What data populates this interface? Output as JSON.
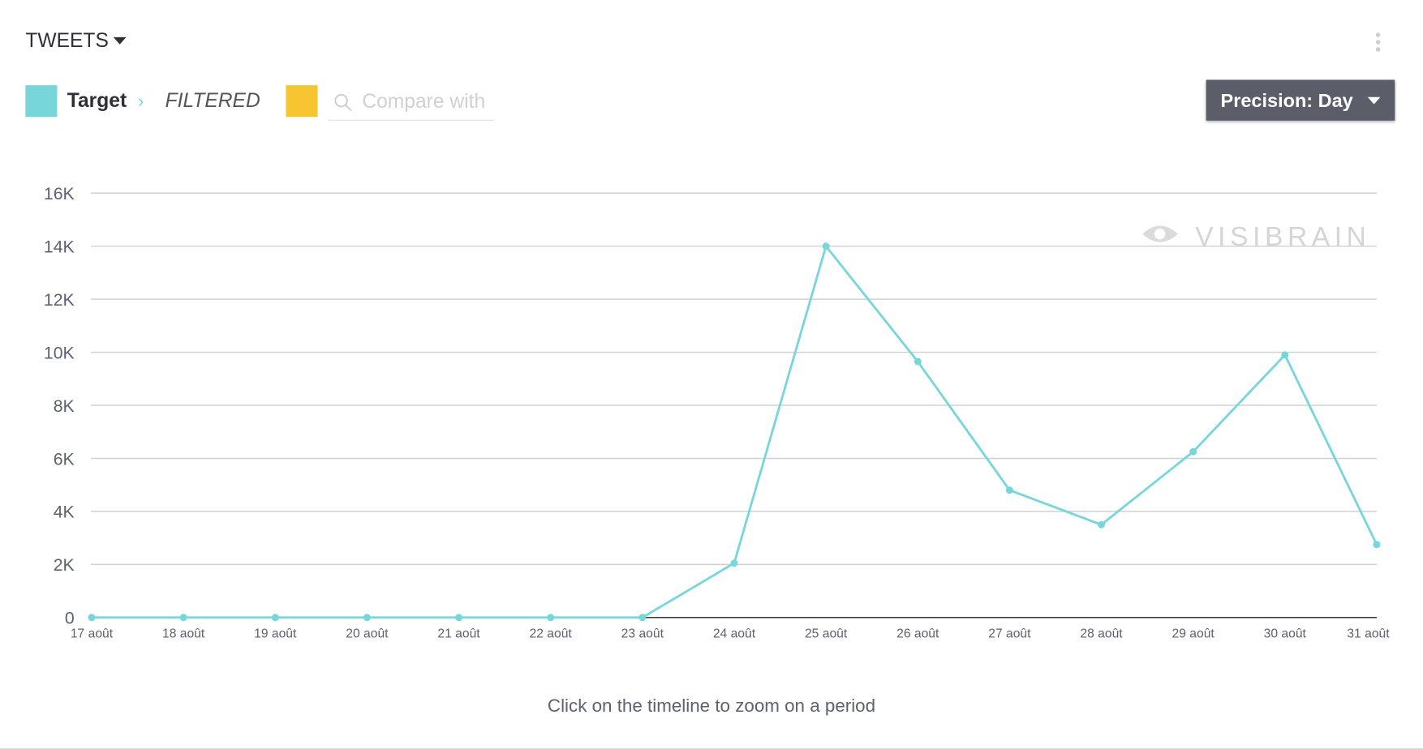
{
  "header": {
    "title": "TWEETS",
    "target": "Target",
    "filter": "FILTERED",
    "compare_placeholder": "Compare with",
    "precision": "Precision: Day"
  },
  "watermark": "VISIBRAIN",
  "footer": "Click on the timeline to zoom on a period",
  "chart_data": {
    "type": "line",
    "categories": [
      "17 août",
      "18 août",
      "19 août",
      "20 août",
      "21 août",
      "22 août",
      "23 août",
      "24 août",
      "25 août",
      "26 août",
      "27 août",
      "28 août",
      "29 août",
      "30 août",
      "31 août"
    ],
    "series": [
      {
        "name": "Target",
        "color": "#76d6da",
        "values": [
          0,
          0,
          0,
          0,
          0,
          0,
          0,
          2050,
          14000,
          9650,
          4800,
          3500,
          6250,
          9900,
          2750
        ]
      }
    ],
    "ylim": [
      0,
      16000
    ],
    "yticks": [
      0,
      {
        "value": 2000,
        "label": "2K"
      },
      {
        "value": 4000,
        "label": "4K"
      },
      {
        "value": 6000,
        "label": "6K"
      },
      {
        "value": 8000,
        "label": "8K"
      },
      {
        "value": 10000,
        "label": "10K"
      },
      {
        "value": 12000,
        "label": "12K"
      },
      {
        "value": 14000,
        "label": "14K"
      },
      {
        "value": 16000,
        "label": "16K"
      }
    ],
    "grid": true
  }
}
